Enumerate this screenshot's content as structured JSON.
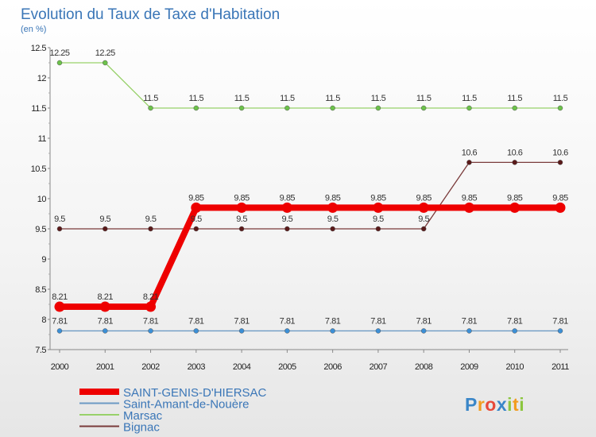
{
  "chart_data": {
    "type": "line",
    "title": "Evolution du Taux de Taxe d'Habitation",
    "subtitle": "(en %)",
    "x": [
      "2000",
      "2001",
      "2002",
      "2003",
      "2004",
      "2005",
      "2006",
      "2007",
      "2008",
      "2009",
      "2010",
      "2011"
    ],
    "ylim": [
      7.5,
      12.5
    ],
    "yticks": [
      "7.5",
      "8",
      "8.5",
      "9",
      "9.5",
      "10",
      "10.5",
      "11",
      "11.5",
      "12",
      "12.5"
    ],
    "grid": false,
    "series": [
      {
        "name": "Saint-Amant-de-Nouère",
        "color": "#6c9ac4",
        "marker": "#3b8fd6",
        "values": [
          7.81,
          7.81,
          7.81,
          7.81,
          7.81,
          7.81,
          7.81,
          7.81,
          7.81,
          7.81,
          7.81,
          7.81
        ],
        "labels": [
          "7.81",
          "7.81",
          "7.81",
          "7.81",
          "7.81",
          "7.81",
          "7.81",
          "7.81",
          "7.81",
          "7.81",
          "7.81",
          "7.81"
        ]
      },
      {
        "name": "Bignac",
        "color": "#7a3b3b",
        "marker": "#5a1a1a",
        "values": [
          9.5,
          9.5,
          9.5,
          9.5,
          9.5,
          9.5,
          9.5,
          9.5,
          9.5,
          10.6,
          10.6,
          10.6
        ],
        "labels": [
          "9.5",
          "9.5",
          "9.5",
          "9.5",
          "9.5",
          "9.5",
          "9.5",
          "9.5",
          "9.5",
          "10.6",
          "10.6",
          "10.6"
        ]
      },
      {
        "name": "Marsac",
        "color": "#98d16a",
        "marker": "#6cc24a",
        "values": [
          12.25,
          12.25,
          11.5,
          11.5,
          11.5,
          11.5,
          11.5,
          11.5,
          11.5,
          11.5,
          11.5,
          11.5
        ],
        "labels": [
          "12.25",
          "12.25",
          "11.5",
          "11.5",
          "11.5",
          "11.5",
          "11.5",
          "11.5",
          "11.5",
          "11.5",
          "11.5",
          "11.5"
        ]
      },
      {
        "name": "SAINT-GENIS-D'HIERSAC",
        "color": "#ee0000",
        "marker": "#ee0000",
        "highlight": true,
        "values": [
          8.21,
          8.21,
          8.21,
          9.85,
          9.85,
          9.85,
          9.85,
          9.85,
          9.85,
          9.85,
          9.85,
          9.85
        ],
        "labels": [
          "8.21",
          "8.21",
          "8.21",
          "9.85",
          "9.85",
          "9.85",
          "9.85",
          "9.85",
          "9.85",
          "9.85",
          "9.85",
          "9.85"
        ]
      }
    ],
    "legend": {
      "position": "bottom-left",
      "entries": [
        {
          "name": "SAINT-GENIS-D'HIERSAC",
          "color": "#ee0000",
          "thick": true
        },
        {
          "name": "Saint-Amant-de-Nouère",
          "color": "#6c9ac4"
        },
        {
          "name": "Marsac",
          "color": "#98d16a"
        },
        {
          "name": "Bignac",
          "color": "#7a3b3b"
        }
      ]
    }
  },
  "logo": {
    "letters": [
      "P",
      "r",
      "o",
      "x",
      "i",
      "t",
      "i"
    ],
    "colors": [
      "#3a86c8",
      "#f29c1f",
      "#e84a3a",
      "#3a86c8",
      "#8cc63f",
      "#f29c1f",
      "#8cc63f"
    ]
  }
}
